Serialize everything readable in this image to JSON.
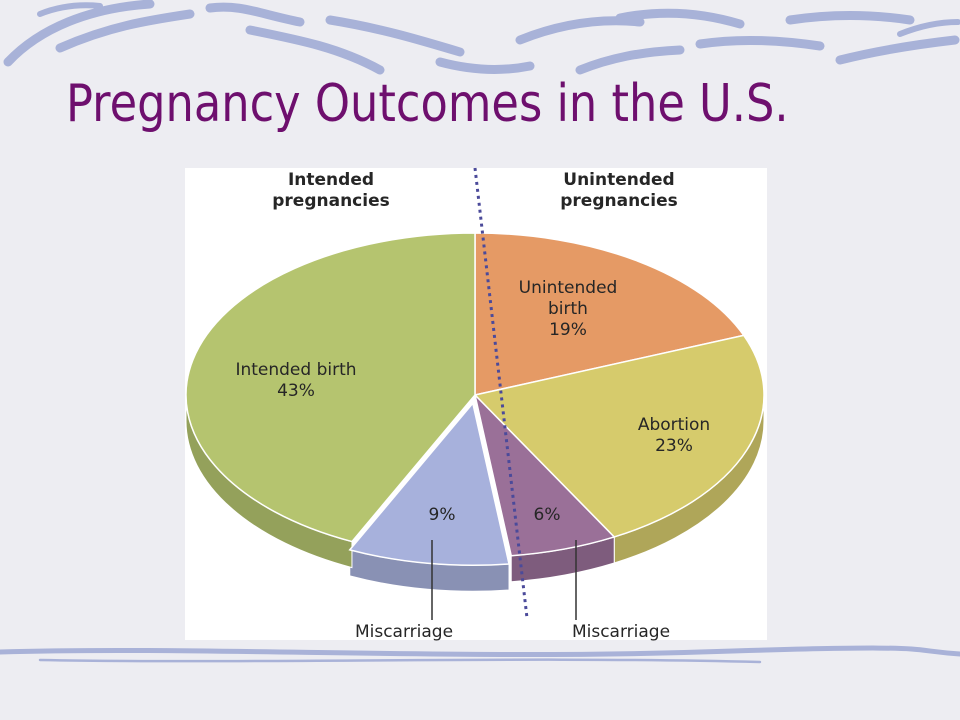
{
  "slide": {
    "title": "Pregnancy Outcomes in the U.S."
  },
  "colors": {
    "title": "#6e0f6e",
    "intended_birth": "#b5c46f",
    "unintended_birth": "#e59a65",
    "abortion": "#d6cb6c",
    "miscarriage_unintended": "#9a7098",
    "miscarriage_intended": "#a7b1dc",
    "divider": "#4b4a9a",
    "decor_swirl": "#9da8d4"
  },
  "chart_data": {
    "type": "pie",
    "title": "",
    "groups": [
      {
        "label": "Intended pregnancies"
      },
      {
        "label": "Unintended pregnancies"
      }
    ],
    "slices": [
      {
        "label": "Unintended birth",
        "value": 19,
        "display": "19%",
        "group": "Unintended pregnancies"
      },
      {
        "label": "Abortion",
        "value": 23,
        "display": "23%",
        "group": "Unintended pregnancies"
      },
      {
        "label": "Miscarriage",
        "value": 6,
        "display": "6%",
        "group": "Unintended pregnancies"
      },
      {
        "label": "Miscarriage",
        "value": 9,
        "display": "9%",
        "group": "Intended pregnancies"
      },
      {
        "label": "Intended birth",
        "value": 43,
        "display": "43%",
        "group": "Intended pregnancies"
      }
    ],
    "style": "3d-tilted"
  }
}
